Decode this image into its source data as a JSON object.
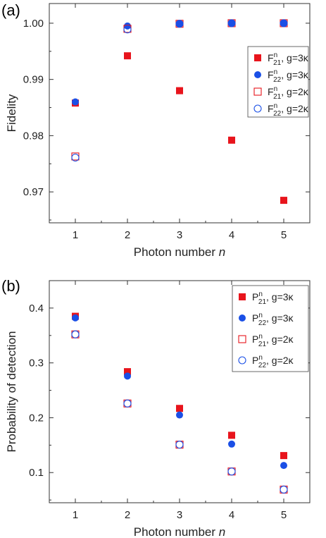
{
  "colors": {
    "red": "#e8141c",
    "blue": "#1a4fe6",
    "purple": "#6e4fa8",
    "axis": "#333333"
  },
  "chart_data": [
    {
      "type": "scatter",
      "panel_label": "(a)",
      "xlabel": "Photon number",
      "xlabel_italic": "n",
      "ylabel": "Fidelity",
      "xlim": [
        0.5,
        5.5
      ],
      "ylim": [
        0.9645,
        1.0035
      ],
      "xticks": [
        "1",
        "2",
        "3",
        "4",
        "5"
      ],
      "yticks": [
        {
          "value": 0.97,
          "label": "0.97"
        },
        {
          "value": 0.98,
          "label": "0.98"
        },
        {
          "value": 0.99,
          "label": "0.99"
        },
        {
          "value": 1.0,
          "label": "1.00"
        }
      ],
      "x": [
        1,
        2,
        3,
        4,
        5
      ],
      "legend_position": "right",
      "series": [
        {
          "sym": "F",
          "sup": "n",
          "sub": "21",
          "suffix": ", g=3κ",
          "marker": "square-filled",
          "color": "#e8141c",
          "values": [
            0.9858,
            0.9942,
            0.988,
            0.9792,
            0.9685
          ]
        },
        {
          "sym": "F",
          "sup": "n",
          "sub": "22",
          "suffix": ", g=3κ",
          "marker": "circle-filled",
          "color": "#1a4fe6",
          "values": [
            0.986,
            0.9995,
            0.9999,
            1.0,
            1.0
          ]
        },
        {
          "sym": "F",
          "sup": "n",
          "sub": "21",
          "suffix": ", g=2κ",
          "marker": "square-open",
          "color": "#e8141c",
          "values": [
            0.9763,
            0.999,
            0.9999,
            1.0,
            1.0
          ]
        },
        {
          "sym": "F",
          "sup": "n",
          "sub": "22",
          "suffix": ", g=2κ",
          "marker": "circle-open",
          "color": "#1a4fe6",
          "values": [
            0.9761,
            0.9989,
            0.9999,
            1.0,
            1.0
          ]
        }
      ]
    },
    {
      "type": "scatter",
      "panel_label": "(b)",
      "xlabel": "Photon number",
      "xlabel_italic": "n",
      "ylabel": "Probability of detection",
      "xlim": [
        0.5,
        5.5
      ],
      "ylim": [
        0.045,
        0.45
      ],
      "xticks": [
        "1",
        "2",
        "3",
        "4",
        "5"
      ],
      "yticks": [
        {
          "value": 0.1,
          "label": "0.1"
        },
        {
          "value": 0.2,
          "label": "0.2"
        },
        {
          "value": 0.3,
          "label": "0.3"
        },
        {
          "value": 0.4,
          "label": "0.4"
        }
      ],
      "x": [
        1,
        2,
        3,
        4,
        5
      ],
      "legend_position": "top-right",
      "series": [
        {
          "sym": "P",
          "sup": "n",
          "sub": "21",
          "suffix": ", g=3κ",
          "marker": "square-filled",
          "color": "#e8141c",
          "values": [
            0.385,
            0.284,
            0.217,
            0.168,
            0.131
          ]
        },
        {
          "sym": "P",
          "sup": "n",
          "sub": "22",
          "suffix": ", g=3κ",
          "marker": "circle-filled",
          "color": "#1a4fe6",
          "values": [
            0.382,
            0.276,
            0.205,
            0.152,
            0.113
          ]
        },
        {
          "sym": "P",
          "sup": "n",
          "sub": "21",
          "suffix": ", g=2κ",
          "marker": "square-open",
          "color": "#e8141c",
          "values": [
            0.352,
            0.226,
            0.151,
            0.102,
            0.069
          ]
        },
        {
          "sym": "P",
          "sup": "n",
          "sub": "22",
          "suffix": ", g=2κ",
          "marker": "circle-open",
          "color": "#1a4fe6",
          "values": [
            0.352,
            0.226,
            0.151,
            0.102,
            0.069
          ]
        }
      ]
    }
  ]
}
